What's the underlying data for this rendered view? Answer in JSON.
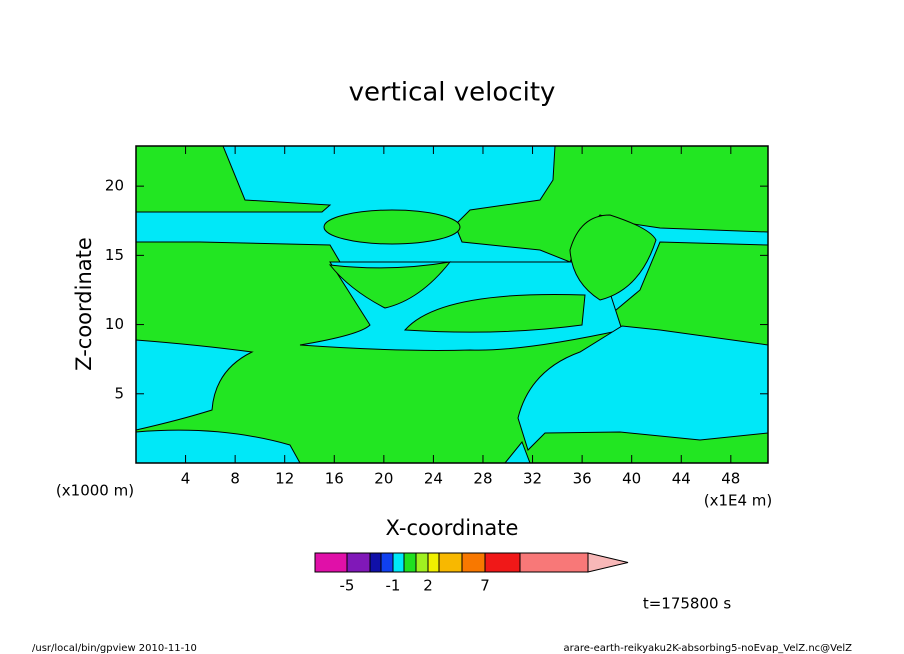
{
  "chart_data": {
    "type": "contour",
    "title": "vertical velocity",
    "xlabel": "X-coordinate",
    "ylabel": "Z-coordinate",
    "y_unit_label": "(x1000 m)",
    "x_unit_label": "(x1E4 m)",
    "xlim": [
      0,
      51
    ],
    "xticks": [
      4,
      8,
      12,
      16,
      20,
      24,
      28,
      32,
      36,
      40,
      44,
      48
    ],
    "ylim": [
      0,
      22.9
    ],
    "yticks": [
      5,
      10,
      15,
      20
    ],
    "colorbar": {
      "levels": [
        -7,
        -5,
        -3,
        -2,
        -1,
        0,
        1,
        2,
        3,
        5,
        7,
        10,
        20
      ],
      "colors": [
        "#e010a8",
        "#8018b8",
        "#1010a8",
        "#1040f0",
        "#00e8f8",
        "#20e020",
        "#a0f020",
        "#f0f000",
        "#f8b800",
        "#f87800",
        "#f01818",
        "#f87878"
      ],
      "extend_color": "#f8b8b8",
      "ticks": [
        -5,
        -1,
        2,
        7
      ]
    },
    "time_label": "t=175800 s",
    "footer_left": "/usr/local/bin/gpview  2010-11-10",
    "footer_right": "arare-earth-reikyaku2K-absorbing5-noEvap_VelZ.nc@VelZ"
  }
}
